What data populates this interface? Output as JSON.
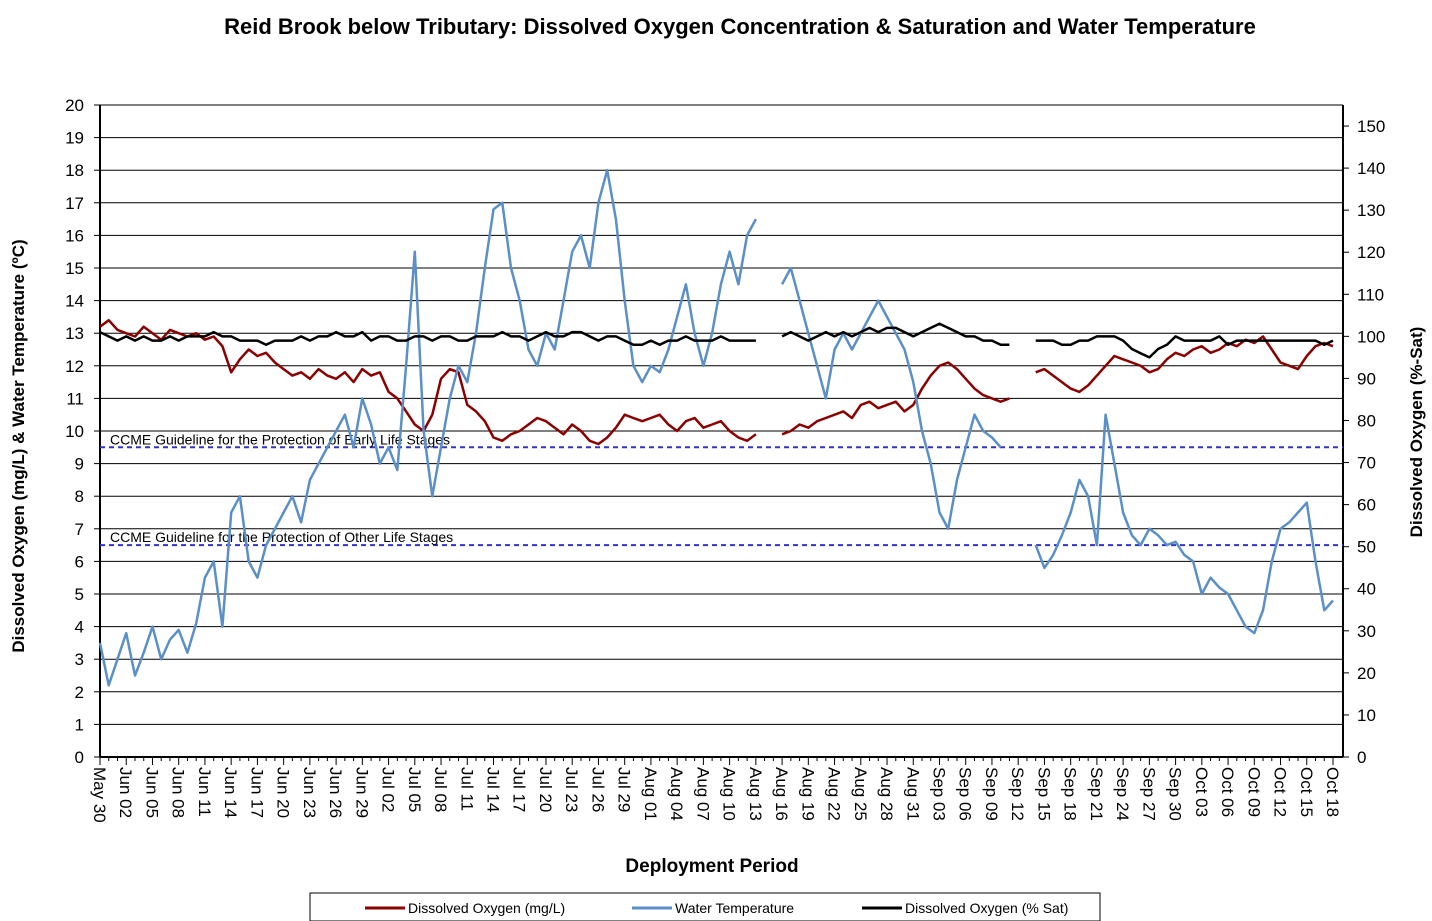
{
  "chart_data": {
    "type": "line",
    "title": "Reid Brook below Tributary: Dissolved Oxygen Concentration & Saturation and Water Temperature",
    "x_label": "Deployment Period",
    "y_label": "Dissolved Oxygen (mg/L) & Water Temperature (ºC)",
    "y2_label": "Dissolved Oxygen (%-Sat)",
    "categories": [
      "May 30",
      null,
      null,
      "Jun 02",
      null,
      null,
      "Jun 05",
      null,
      null,
      "Jun 08",
      null,
      null,
      "Jun 11",
      null,
      null,
      "Jun 14",
      null,
      null,
      "Jun 17",
      null,
      null,
      "Jun 20",
      null,
      null,
      "Jun 23",
      null,
      null,
      "Jun 26",
      null,
      null,
      "Jun 29",
      null,
      null,
      "Jul 02",
      null,
      null,
      "Jul 05",
      null,
      null,
      "Jul 08",
      null,
      null,
      "Jul 11",
      null,
      null,
      "Jul 14",
      null,
      null,
      "Jul 17",
      null,
      null,
      "Jul 20",
      null,
      null,
      "Jul 23",
      null,
      null,
      "Jul 26",
      null,
      null,
      "Jul 29",
      null,
      null,
      "Aug 01",
      null,
      null,
      "Aug 04",
      null,
      null,
      "Aug 07",
      null,
      null,
      "Aug 10",
      null,
      null,
      "Aug 13",
      null,
      null,
      "Aug 16",
      null,
      null,
      "Aug 19",
      null,
      null,
      "Aug 22",
      null,
      null,
      "Aug 25",
      null,
      null,
      "Aug 28",
      null,
      null,
      "Aug 31",
      null,
      null,
      "Sep 03",
      null,
      null,
      "Sep 06",
      null,
      null,
      "Sep 09",
      null,
      null,
      "Sep 12",
      null,
      null,
      "Sep 15",
      null,
      null,
      "Sep 18",
      null,
      null,
      "Sep 21",
      null,
      null,
      "Sep 24",
      null,
      null,
      "Sep 27",
      null,
      null,
      "Sep 30",
      null,
      null,
      "Oct 03",
      null,
      null,
      "Oct 06",
      null,
      null,
      "Oct 09",
      null,
      null,
      "Oct 12",
      null,
      null,
      "Oct 15",
      null,
      null,
      "Oct 18"
    ],
    "series": [
      {
        "name": "Dissolved Oxygen (mg/L)",
        "color": "#8b0000",
        "values": [
          13.2,
          13.4,
          13.1,
          13.0,
          12.9,
          13.2,
          13.0,
          12.8,
          13.1,
          13.0,
          12.9,
          13.0,
          12.8,
          12.9,
          12.6,
          11.8,
          12.2,
          12.5,
          12.3,
          12.4,
          12.1,
          11.9,
          11.7,
          11.8,
          11.6,
          11.9,
          11.7,
          11.6,
          11.8,
          11.5,
          11.9,
          11.7,
          11.8,
          11.2,
          11.0,
          10.6,
          10.2,
          10.0,
          10.5,
          11.6,
          11.9,
          11.8,
          10.8,
          10.6,
          10.3,
          9.8,
          9.7,
          9.9,
          10.0,
          10.2,
          10.4,
          10.3,
          10.1,
          9.9,
          10.2,
          10.0,
          9.7,
          9.6,
          9.8,
          10.1,
          10.5,
          10.4,
          10.3,
          10.4,
          10.5,
          10.2,
          10.0,
          10.3,
          10.4,
          10.1,
          10.2,
          10.3,
          10.0,
          9.8,
          9.7,
          9.9,
          null,
          null,
          9.9,
          10.0,
          10.2,
          10.1,
          10.3,
          10.4,
          10.5,
          10.6,
          10.4,
          10.8,
          10.9,
          10.7,
          10.8,
          10.9,
          10.6,
          10.8,
          11.3,
          11.7,
          12.0,
          12.1,
          11.9,
          11.6,
          11.3,
          11.1,
          11.0,
          10.9,
          11.0,
          null,
          null,
          11.8,
          11.9,
          11.7,
          11.5,
          11.3,
          11.2,
          11.4,
          11.7,
          12.0,
          12.3,
          12.2,
          12.1,
          12.0,
          11.8,
          11.9,
          12.2,
          12.4,
          12.3,
          12.5,
          12.6,
          12.4,
          12.5,
          12.7,
          12.6,
          12.8,
          12.7,
          12.9,
          12.5,
          12.1,
          12.0,
          11.9,
          12.3,
          12.6,
          12.7,
          12.6
        ]
      },
      {
        "name": "Water Temperature",
        "color": "#5b8fc7",
        "values": [
          3.5,
          2.2,
          3.0,
          3.8,
          2.5,
          3.2,
          4.0,
          3.0,
          3.6,
          3.9,
          3.2,
          4.1,
          5.5,
          6.0,
          4.0,
          7.5,
          8.0,
          6.0,
          5.5,
          6.5,
          7.0,
          7.5,
          8.0,
          7.2,
          8.5,
          9.0,
          9.5,
          10.0,
          10.5,
          9.5,
          11.0,
          10.2,
          9.0,
          9.5,
          8.8,
          12.0,
          15.5,
          10.0,
          8.0,
          9.5,
          11.0,
          12.0,
          11.5,
          13.0,
          15.0,
          16.8,
          17.0,
          15.0,
          14.0,
          12.5,
          12.0,
          13.0,
          12.5,
          14.0,
          15.5,
          16.0,
          15.0,
          17.0,
          18.0,
          16.5,
          14.0,
          12.0,
          11.5,
          12.0,
          11.8,
          12.5,
          13.5,
          14.5,
          13.0,
          12.0,
          13.0,
          14.5,
          15.5,
          14.5,
          16.0,
          16.5,
          null,
          null,
          14.5,
          15.0,
          14.0,
          13.0,
          12.0,
          11.0,
          12.5,
          13.0,
          12.5,
          13.0,
          13.5,
          14.0,
          13.5,
          13.0,
          12.5,
          11.5,
          10.0,
          9.0,
          7.5,
          7.0,
          8.5,
          9.5,
          10.5,
          10.0,
          9.8,
          9.5,
          null,
          null,
          null,
          6.5,
          5.8,
          6.2,
          6.8,
          7.5,
          8.5,
          8.0,
          6.5,
          10.5,
          9.0,
          7.5,
          6.8,
          6.5,
          7.0,
          6.8,
          6.5,
          6.6,
          6.2,
          6.0,
          5.0,
          5.5,
          5.2,
          5.0,
          4.5,
          4.0,
          3.8,
          4.5,
          6.0,
          7.0,
          7.2,
          7.5,
          7.8,
          6.0,
          4.5,
          4.8
        ]
      },
      {
        "name": "Dissolved Oxygen (% Sat)",
        "color": "#000000",
        "axis": "y2",
        "values": [
          101,
          100,
          99,
          100,
          99,
          100,
          99,
          99,
          100,
          99,
          100,
          100,
          100,
          101,
          100,
          100,
          99,
          99,
          99,
          98,
          99,
          99,
          99,
          100,
          99,
          100,
          100,
          101,
          100,
          100,
          101,
          99,
          100,
          100,
          99,
          99,
          100,
          100,
          99,
          100,
          100,
          99,
          99,
          100,
          100,
          100,
          101,
          100,
          100,
          99,
          100,
          101,
          100,
          100,
          101,
          101,
          100,
          99,
          100,
          100,
          99,
          98,
          98,
          99,
          98,
          99,
          99,
          100,
          99,
          99,
          99,
          100,
          99,
          99,
          99,
          99,
          null,
          null,
          100,
          101,
          100,
          99,
          100,
          101,
          100,
          101,
          100,
          101,
          102,
          101,
          102,
          102,
          101,
          100,
          101,
          102,
          103,
          102,
          101,
          100,
          100,
          99,
          99,
          98,
          98,
          null,
          null,
          99,
          99,
          99,
          98,
          98,
          99,
          99,
          100,
          100,
          100,
          99,
          97,
          96,
          95,
          97,
          98,
          100,
          99,
          99,
          99,
          99,
          100,
          98,
          99,
          99,
          99,
          99,
          99,
          99,
          99,
          99,
          99,
          99,
          98,
          99
        ]
      }
    ],
    "annotations": [
      {
        "text": "CCME Guideline for the Protection of Early Life Stages",
        "value": 9.5,
        "color": "#3333cc"
      },
      {
        "text": "CCME Guideline for the Protection of Other Life Stages",
        "value": 6.5,
        "color": "#3333cc"
      }
    ],
    "ylim": [
      0,
      20
    ],
    "yticks": [
      0,
      1,
      2,
      3,
      4,
      5,
      6,
      7,
      8,
      9,
      10,
      11,
      12,
      13,
      14,
      15,
      16,
      17,
      18,
      19,
      20
    ],
    "y2lim": [
      0,
      155
    ],
    "y2ticks": [
      0,
      10,
      20,
      30,
      40,
      50,
      60,
      70,
      80,
      90,
      100,
      110,
      120,
      130,
      140,
      150
    ],
    "grid": true,
    "legend": "bottom"
  }
}
